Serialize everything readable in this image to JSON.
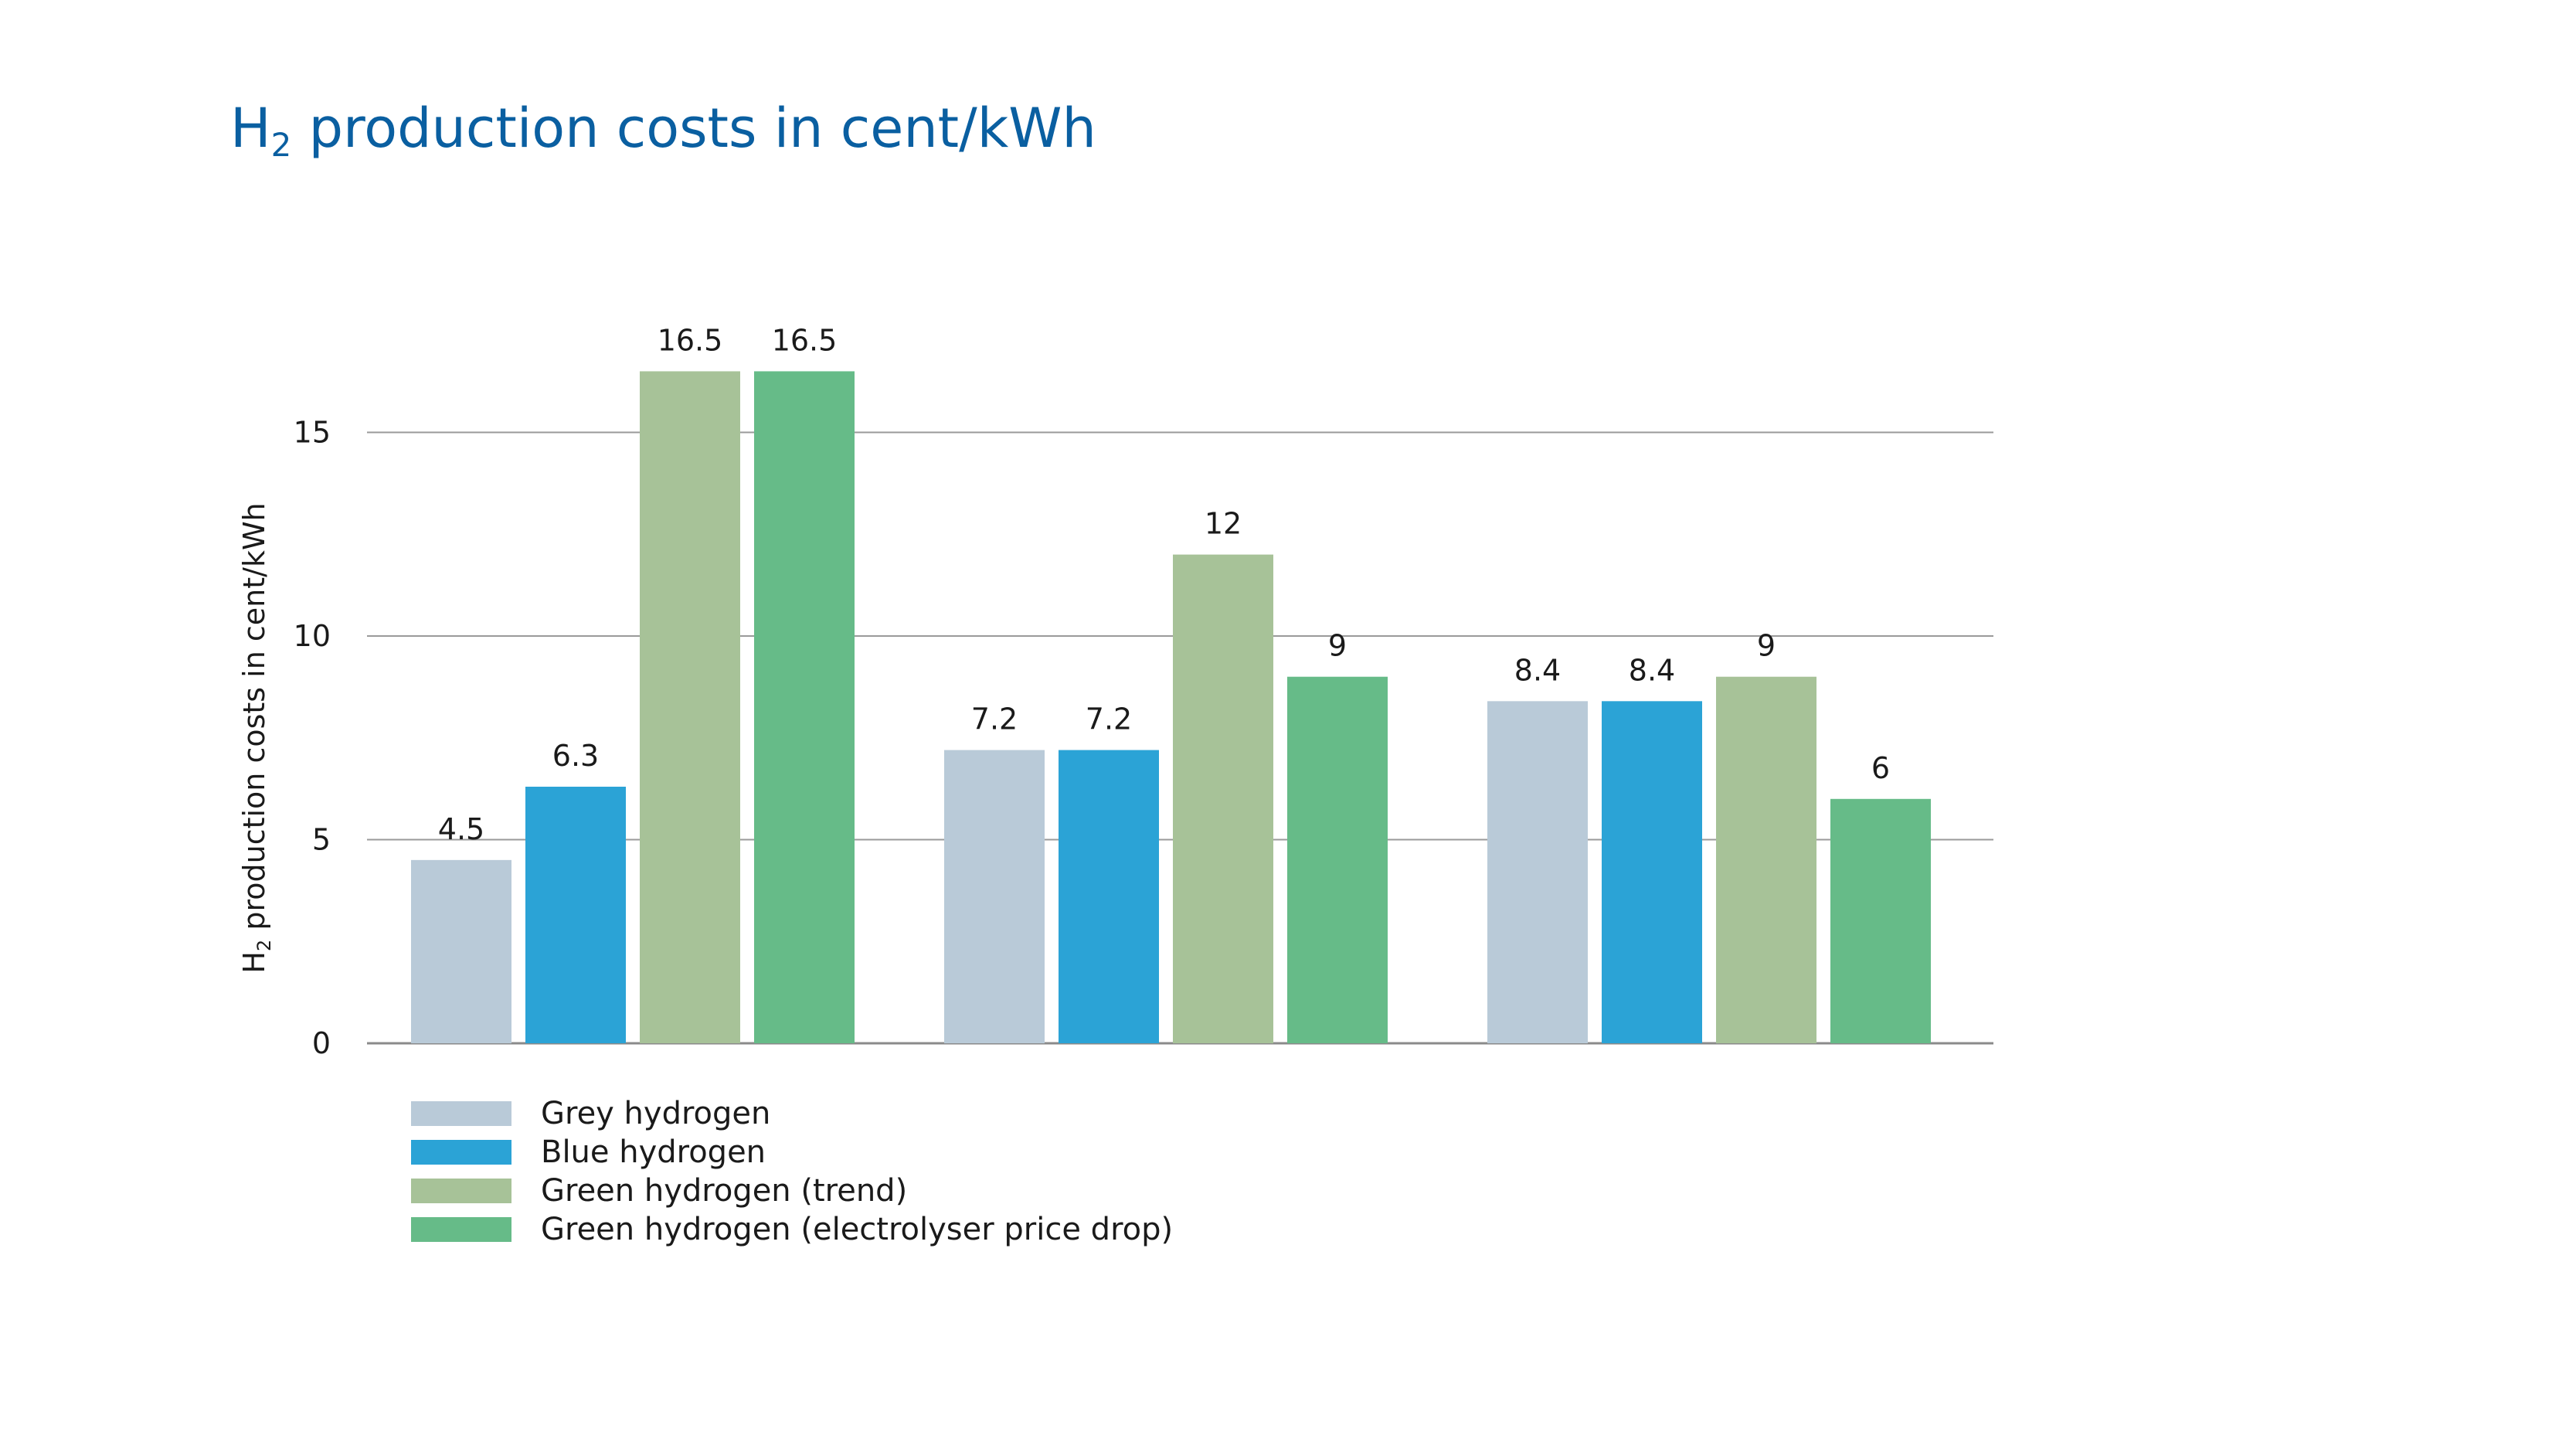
{
  "title": {
    "main": "H",
    "sub": "2",
    "rest": " production costs in cent/kWh"
  },
  "chart_data": {
    "type": "bar",
    "title": "H2 production costs in cent/kWh",
    "xlabel": "",
    "ylabel": {
      "main": "H",
      "sub": "2",
      "rest": " production costs in cent/kWh"
    },
    "ylim": [
      0,
      20
    ],
    "yticks": [
      0,
      5,
      10,
      15
    ],
    "grid": true,
    "legend": "bottom-left",
    "categories": [
      "",
      "",
      ""
    ],
    "series": [
      {
        "name": "Grey hydrogen",
        "color": "#b9cad8",
        "values": [
          4.5,
          7.2,
          8.4
        ]
      },
      {
        "name": "Blue hydrogen",
        "color": "#2ba3d6",
        "values": [
          6.3,
          7.2,
          8.4
        ]
      },
      {
        "name": "Green hydrogen (trend)",
        "color": "#a7c298",
        "values": [
          16.5,
          12,
          9
        ]
      },
      {
        "name": "Green hydrogen (electrolyser price drop)",
        "color": "#66bb88",
        "values": [
          16.5,
          9,
          6
        ]
      }
    ]
  }
}
